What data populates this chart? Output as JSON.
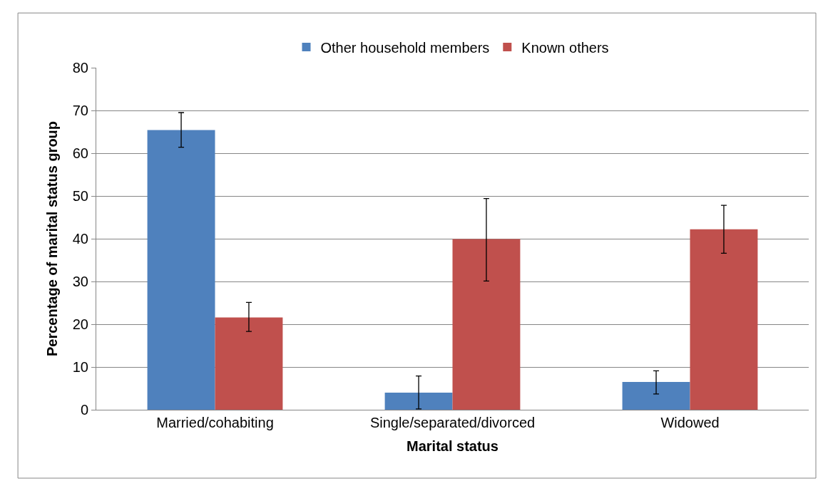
{
  "chart_data": {
    "type": "bar",
    "xlabel": "Marital status",
    "ylabel": "Percentage of marital status group",
    "categories": [
      "Married/cohabiting",
      "Single/separated/divorced",
      "Widowed"
    ],
    "series": [
      {
        "name": "Other household members",
        "color": "#4f81bd",
        "values": [
          65.4,
          4.0,
          6.5
        ],
        "errors": [
          [
            61.4,
            69.5
          ],
          [
            0.2,
            7.9
          ],
          [
            3.7,
            9.1
          ]
        ]
      },
      {
        "name": "Known others",
        "color": "#c0504d",
        "values": [
          21.6,
          39.9,
          42.2
        ],
        "errors": [
          [
            18.3,
            25.1
          ],
          [
            30.1,
            49.4
          ],
          [
            36.6,
            47.8
          ]
        ]
      }
    ],
    "ylim": [
      0,
      80
    ],
    "yticks": [
      0,
      10,
      20,
      30,
      40,
      50,
      60,
      70,
      80
    ],
    "grid": "y",
    "legend": "top"
  }
}
